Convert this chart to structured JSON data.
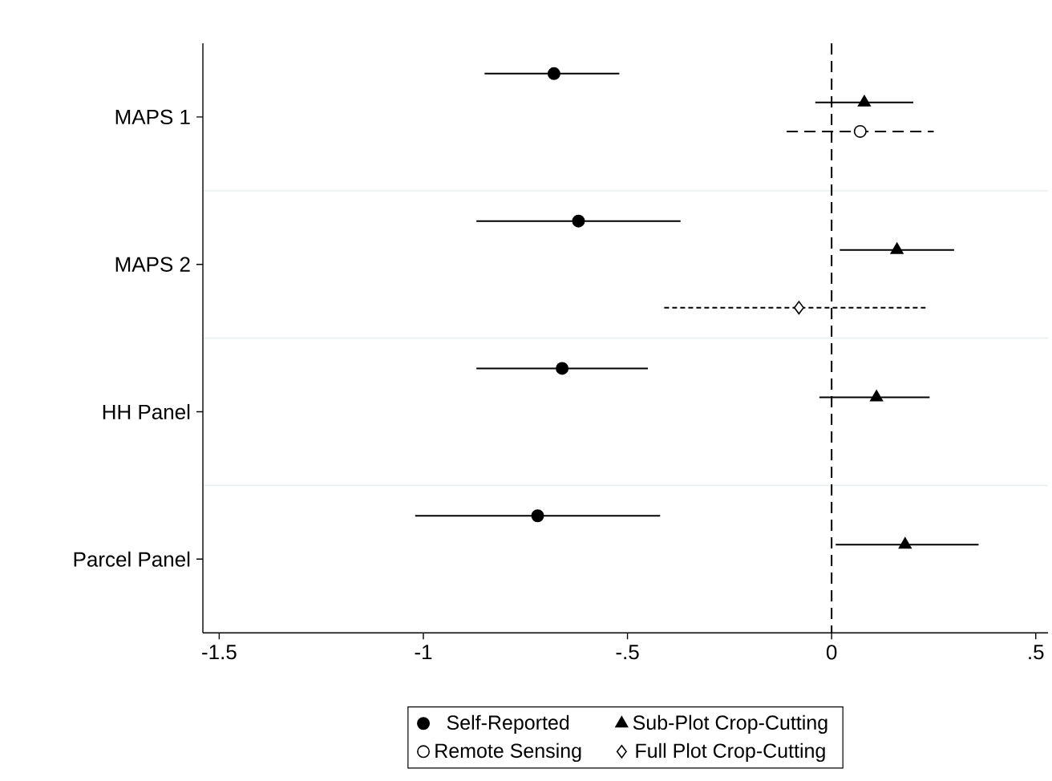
{
  "chart_data": {
    "type": "scatter",
    "orientation": "horizontal",
    "categories": [
      "MAPS 1",
      "MAPS 2",
      "HH Panel",
      "Parcel Panel"
    ],
    "series": [
      {
        "name": "Self-Reported",
        "color": "#000000",
        "marker": "circle",
        "values": [
          -0.68,
          -0.62,
          -0.66,
          -0.72
        ],
        "errors": [
          [
            -0.85,
            -0.52
          ],
          [
            -0.87,
            -0.37
          ],
          [
            -0.87,
            -0.45
          ],
          [
            -1.02,
            -0.42
          ]
        ]
      },
      {
        "name": "Sub-Plot Crop-Cutting",
        "color": "#000000",
        "marker": "triangle",
        "values": [
          0.08,
          0.16,
          0.11,
          0.18
        ],
        "errors": [
          [
            -0.04,
            0.2
          ],
          [
            0.02,
            0.3
          ],
          [
            -0.03,
            0.24
          ],
          [
            0.01,
            0.36
          ]
        ]
      },
      {
        "name": "Remote Sensing",
        "color": "#000000",
        "marker": "circle",
        "line_style": "dashed",
        "values": [
          0.07,
          null,
          null,
          null
        ],
        "errors": [
          [
            -0.11,
            0.25
          ],
          null,
          null,
          null
        ]
      },
      {
        "name": "Full Plot Crop-Cutting",
        "color": "#000000",
        "marker": "diamond",
        "line_style": "dotted",
        "values": [
          null,
          -0.08,
          null,
          null
        ],
        "errors": [
          null,
          [
            -0.41,
            0.23
          ],
          null,
          null
        ]
      }
    ],
    "xlim": [
      -1.54,
      0.53
    ],
    "xticks": [
      {
        "value": -1.5,
        "label": "-1.5"
      },
      {
        "value": -1,
        "label": "-1"
      },
      {
        "value": -0.5,
        "label": "-.5"
      },
      {
        "value": 0,
        "label": "0"
      },
      {
        "value": 0.5,
        "label": ".5"
      }
    ],
    "ref_lines": [
      {
        "axis": "x",
        "value": 0,
        "line_style": "dashed",
        "color": "#000000"
      }
    ],
    "grid": "y",
    "legend": "bottom"
  }
}
